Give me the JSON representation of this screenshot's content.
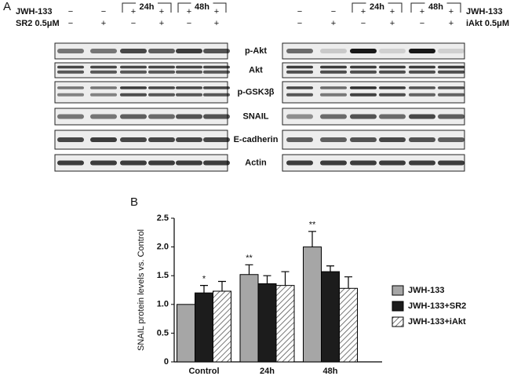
{
  "panel_a": {
    "label": "A",
    "proteins": [
      "p-Akt",
      "Akt",
      "p-GSK3β",
      "SNAIL",
      "E-cadherin",
      "Actin"
    ],
    "left": {
      "treatments": [
        {
          "name": "JWH-133",
          "marks": [
            "−",
            "−",
            "+",
            "+",
            "+",
            "+"
          ]
        },
        {
          "name": "SR2 0.5μM",
          "marks": [
            "−",
            "+",
            "−",
            "+",
            "−",
            "+"
          ]
        }
      ],
      "time_labels": [
        "24h",
        "48h"
      ]
    },
    "right": {
      "treatments": [
        {
          "name": "JWH-133",
          "marks": [
            "−",
            "−",
            "+",
            "+",
            "+",
            "+"
          ]
        },
        {
          "name": "iAkt 0.5μM",
          "marks": [
            "−",
            "+",
            "−",
            "+",
            "−",
            "+"
          ]
        }
      ],
      "time_labels": [
        "24h",
        "48h"
      ]
    }
  },
  "panel_b_label": "B",
  "chart_data": {
    "type": "bar",
    "ylabel": "SNAIL protein levels vs. Control",
    "categories": [
      "Control",
      "24h",
      "48h"
    ],
    "series": [
      {
        "name": "JWH-133",
        "color": "#a6a6a6",
        "values": [
          1.0,
          1.52,
          2.0
        ],
        "errors": [
          0,
          0.17,
          0.27
        ],
        "significance": [
          null,
          "**",
          "**"
        ]
      },
      {
        "name": "JWH-133+SR2",
        "color": "#1c1c1c",
        "values": [
          1.2,
          1.36,
          1.57
        ],
        "errors": [
          0.13,
          0.14,
          0.1
        ],
        "significance": [
          "*",
          null,
          null
        ]
      },
      {
        "name": "JWH-133+iAkt",
        "color": "#ffffff",
        "pattern": "hatch",
        "values": [
          1.23,
          1.33,
          1.28
        ],
        "errors": [
          0.17,
          0.24,
          0.2
        ],
        "significance": [
          null,
          null,
          null
        ]
      }
    ],
    "ylim": [
      0,
      2.5
    ],
    "yticks": [
      0,
      0.5,
      {
        "value": 1,
        "label": "1.0"
      },
      {
        "value": 1.5,
        "label": "1.5"
      },
      {
        "value": 2,
        "label": "2.0"
      },
      2.5
    ],
    "legend": "right"
  }
}
